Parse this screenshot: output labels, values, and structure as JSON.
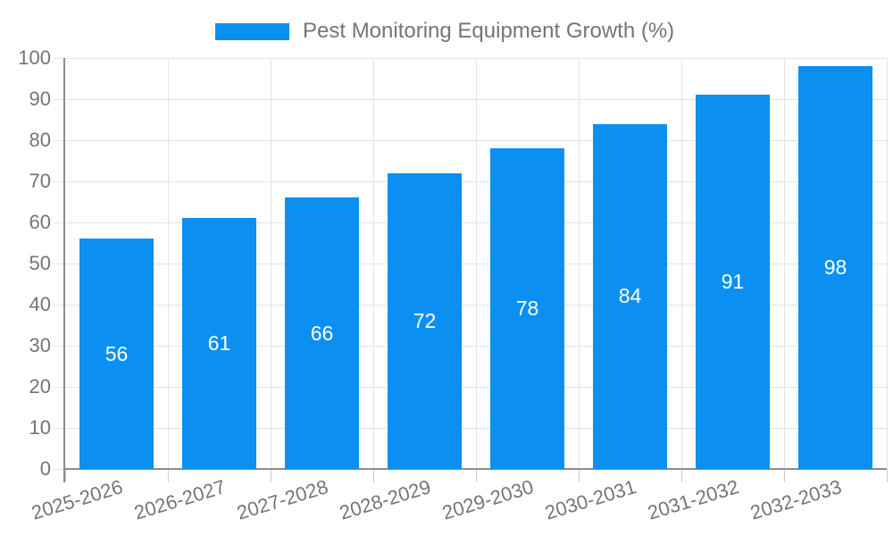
{
  "chart_data": {
    "type": "bar",
    "title": "Pest Monitoring Equipment Growth (%)",
    "legend_position": "top",
    "categories": [
      "2025-2026",
      "2026-2027",
      "2027-2028",
      "2028-2029",
      "2029-2030",
      "2030-2031",
      "2031-2032",
      "2032-2033"
    ],
    "values": [
      56,
      61,
      66,
      72,
      78,
      84,
      91,
      98
    ],
    "xlabel": "",
    "ylabel": "",
    "ylim": [
      0,
      100
    ],
    "ytick_step": 10,
    "grid": true,
    "bar_color": "#0b90f2",
    "value_label_color": "#ffffff",
    "grid_color": "#e3e3e3",
    "tick_color": "#cccccc",
    "axis_color": "#8c8c8c",
    "text_color": "#757575"
  }
}
